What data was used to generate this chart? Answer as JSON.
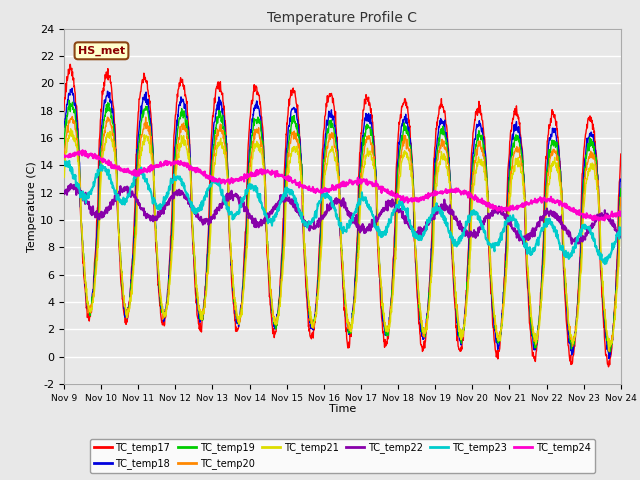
{
  "title": "Temperature Profile C",
  "xlabel": "Time",
  "ylabel": "Temperature (C)",
  "ylim": [
    -2,
    24
  ],
  "x_tick_labels": [
    "Nov 9",
    "Nov 10",
    "Nov 11",
    "Nov 12",
    "Nov 13",
    "Nov 14",
    "Nov 15",
    "Nov 16",
    "Nov 17",
    "Nov 18",
    "Nov 19",
    "Nov 20",
    "Nov 21",
    "Nov 22",
    "Nov 23",
    "Nov 24"
  ],
  "annotation_text": "HS_met",
  "series_colors": {
    "TC_temp17": "#ff0000",
    "TC_temp18": "#0000dd",
    "TC_temp19": "#00cc00",
    "TC_temp20": "#ff8800",
    "TC_temp21": "#dddd00",
    "TC_temp22": "#8800aa",
    "TC_temp23": "#00cccc",
    "TC_temp24": "#ff00cc"
  },
  "legend_order": [
    "TC_temp17",
    "TC_temp18",
    "TC_temp19",
    "TC_temp20",
    "TC_temp21",
    "TC_temp22",
    "TC_temp23",
    "TC_temp24"
  ],
  "fig_bg_color": "#e8e8e8",
  "plot_bg_color": "#e8e8e8"
}
